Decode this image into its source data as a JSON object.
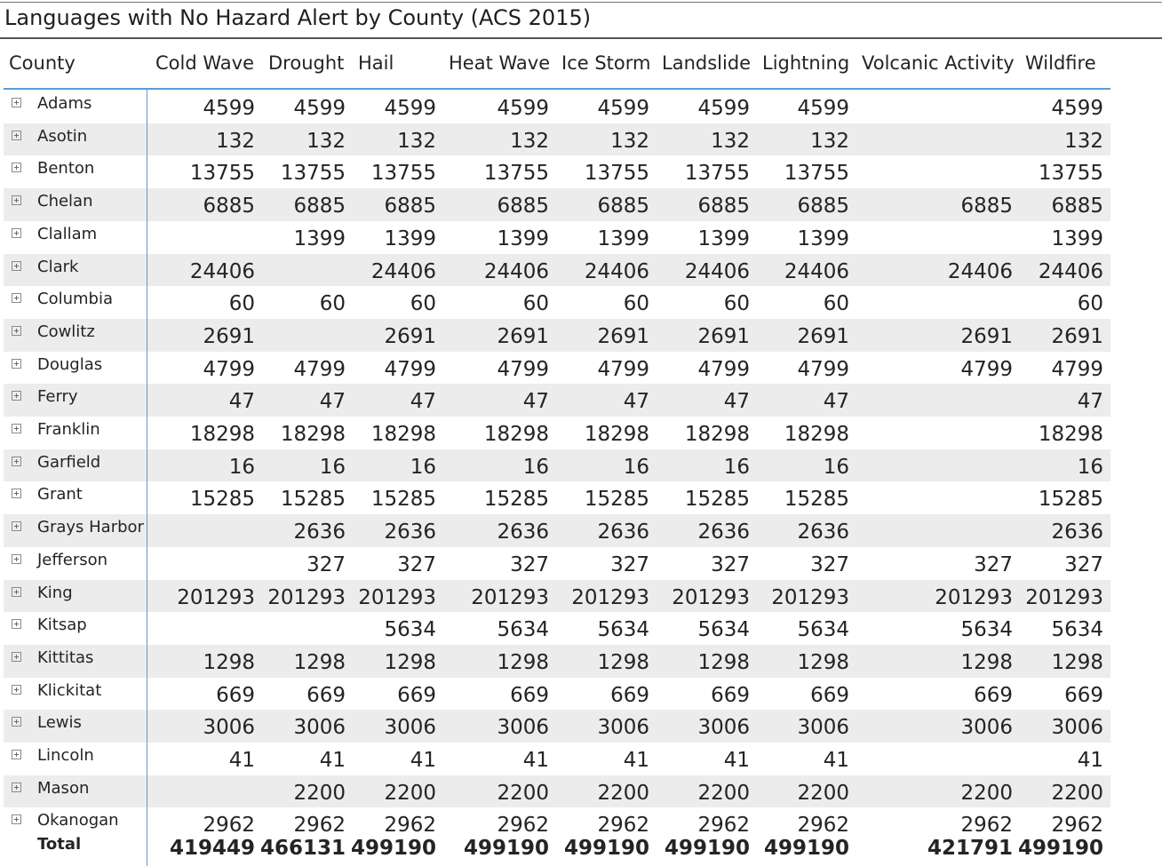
{
  "title": "Languages with No Hazard Alert by County (ACS 2015)",
  "columns": [
    "County",
    "Cold Wave",
    "Drought",
    "Hail",
    "Heat Wave",
    "Ice Storm",
    "Landslide",
    "Lightning",
    "Volcanic Activity",
    "Wildfire"
  ],
  "rows": [
    {
      "county": "Adams",
      "values": [
        "4599",
        "4599",
        "4599",
        "4599",
        "4599",
        "4599",
        "4599",
        "",
        "4599"
      ]
    },
    {
      "county": "Asotin",
      "values": [
        "132",
        "132",
        "132",
        "132",
        "132",
        "132",
        "132",
        "",
        "132"
      ]
    },
    {
      "county": "Benton",
      "values": [
        "13755",
        "13755",
        "13755",
        "13755",
        "13755",
        "13755",
        "13755",
        "",
        "13755"
      ]
    },
    {
      "county": "Chelan",
      "values": [
        "6885",
        "6885",
        "6885",
        "6885",
        "6885",
        "6885",
        "6885",
        "6885",
        "6885"
      ]
    },
    {
      "county": "Clallam",
      "values": [
        "",
        "1399",
        "1399",
        "1399",
        "1399",
        "1399",
        "1399",
        "",
        "1399"
      ]
    },
    {
      "county": "Clark",
      "values": [
        "24406",
        "",
        "24406",
        "24406",
        "24406",
        "24406",
        "24406",
        "24406",
        "24406"
      ]
    },
    {
      "county": "Columbia",
      "values": [
        "60",
        "60",
        "60",
        "60",
        "60",
        "60",
        "60",
        "",
        "60"
      ]
    },
    {
      "county": "Cowlitz",
      "values": [
        "2691",
        "",
        "2691",
        "2691",
        "2691",
        "2691",
        "2691",
        "2691",
        "2691"
      ]
    },
    {
      "county": "Douglas",
      "values": [
        "4799",
        "4799",
        "4799",
        "4799",
        "4799",
        "4799",
        "4799",
        "4799",
        "4799"
      ]
    },
    {
      "county": "Ferry",
      "values": [
        "47",
        "47",
        "47",
        "47",
        "47",
        "47",
        "47",
        "",
        "47"
      ]
    },
    {
      "county": "Franklin",
      "values": [
        "18298",
        "18298",
        "18298",
        "18298",
        "18298",
        "18298",
        "18298",
        "",
        "18298"
      ]
    },
    {
      "county": "Garfield",
      "values": [
        "16",
        "16",
        "16",
        "16",
        "16",
        "16",
        "16",
        "",
        "16"
      ]
    },
    {
      "county": "Grant",
      "values": [
        "15285",
        "15285",
        "15285",
        "15285",
        "15285",
        "15285",
        "15285",
        "",
        "15285"
      ]
    },
    {
      "county": "Grays Harbor",
      "values": [
        "",
        "2636",
        "2636",
        "2636",
        "2636",
        "2636",
        "2636",
        "",
        "2636"
      ]
    },
    {
      "county": "Jefferson",
      "values": [
        "",
        "327",
        "327",
        "327",
        "327",
        "327",
        "327",
        "327",
        "327"
      ]
    },
    {
      "county": "King",
      "values": [
        "201293",
        "201293",
        "201293",
        "201293",
        "201293",
        "201293",
        "201293",
        "201293",
        "201293"
      ]
    },
    {
      "county": "Kitsap",
      "values": [
        "",
        "",
        "5634",
        "5634",
        "5634",
        "5634",
        "5634",
        "5634",
        "5634"
      ]
    },
    {
      "county": "Kittitas",
      "values": [
        "1298",
        "1298",
        "1298",
        "1298",
        "1298",
        "1298",
        "1298",
        "1298",
        "1298"
      ]
    },
    {
      "county": "Klickitat",
      "values": [
        "669",
        "669",
        "669",
        "669",
        "669",
        "669",
        "669",
        "669",
        "669"
      ]
    },
    {
      "county": "Lewis",
      "values": [
        "3006",
        "3006",
        "3006",
        "3006",
        "3006",
        "3006",
        "3006",
        "3006",
        "3006"
      ]
    },
    {
      "county": "Lincoln",
      "values": [
        "41",
        "41",
        "41",
        "41",
        "41",
        "41",
        "41",
        "",
        "41"
      ]
    },
    {
      "county": "Mason",
      "values": [
        "",
        "2200",
        "2200",
        "2200",
        "2200",
        "2200",
        "2200",
        "2200",
        "2200"
      ]
    },
    {
      "county": "Okanogan",
      "values": [
        "2962",
        "2962",
        "2962",
        "2962",
        "2962",
        "2962",
        "2962",
        "2962",
        "2962"
      ]
    }
  ],
  "total": {
    "label": "Total",
    "values": [
      "419449",
      "466131",
      "499190",
      "499190",
      "499190",
      "499190",
      "499190",
      "421791",
      "499190"
    ]
  },
  "colors": {
    "accent_line": "#5b9bd5",
    "alt_row": "#ececec",
    "title_rule": "#555555"
  },
  "icons": {
    "expand": "plus-box-icon"
  }
}
